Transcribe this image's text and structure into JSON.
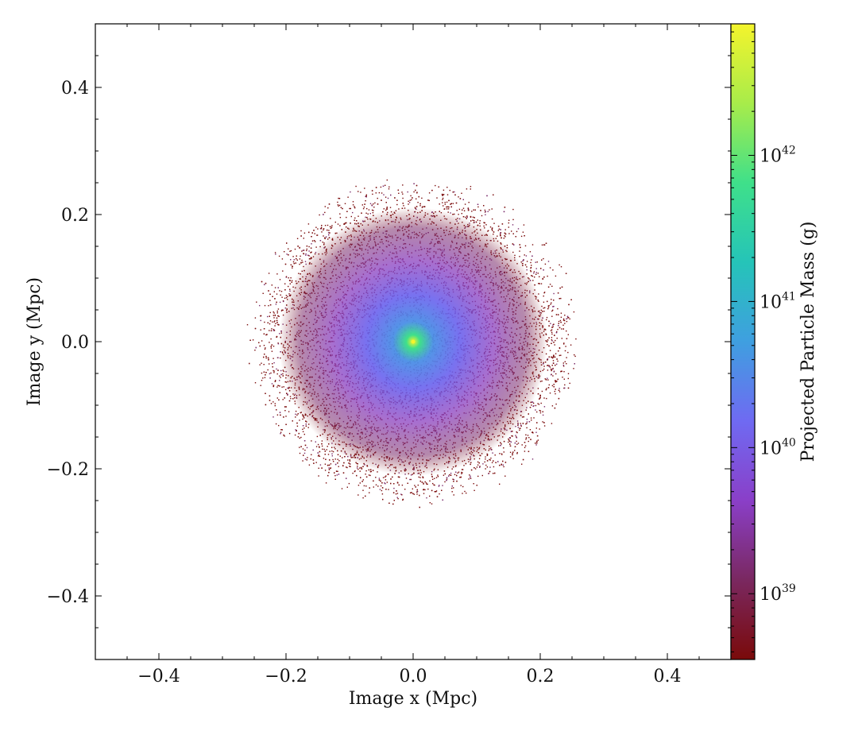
{
  "chart_data": {
    "type": "heatmap",
    "title": "",
    "xlabel": "Image x  (Mpc)",
    "ylabel": "Image y  (Mpc)",
    "xlim": [
      -0.5,
      0.5
    ],
    "ylim": [
      -0.5,
      0.5
    ],
    "x_ticks": [
      {
        "value": -0.4,
        "label": "−0.4"
      },
      {
        "value": -0.2,
        "label": "−0.2"
      },
      {
        "value": 0.0,
        "label": "0.0"
      },
      {
        "value": 0.2,
        "label": "0.2"
      },
      {
        "value": 0.4,
        "label": "0.4"
      }
    ],
    "y_ticks": [
      {
        "value": 0.4,
        "label": "0.4"
      },
      {
        "value": 0.2,
        "label": "0.2"
      },
      {
        "value": 0.0,
        "label": "0.0"
      },
      {
        "value": -0.2,
        "label": "−0.2"
      },
      {
        "value": -0.4,
        "label": "−0.4"
      }
    ],
    "grid": false,
    "distribution": {
      "center": [
        0.0,
        0.0
      ],
      "extent_radius_mpc": 0.24
    },
    "colorbar": {
      "label": "Projected Particle Mass  (g)",
      "scale": "log",
      "range_log10": [
        38.55,
        42.9
      ],
      "ticks": [
        {
          "log10": 39,
          "base": "10",
          "exp": "39"
        },
        {
          "log10": 40,
          "base": "10",
          "exp": "40"
        },
        {
          "log10": 41,
          "base": "10",
          "exp": "41"
        },
        {
          "log10": 42,
          "base": "10",
          "exp": "42"
        }
      ],
      "colormap_stops": [
        "#7a0a0a",
        "#7a2860",
        "#8a3fc8",
        "#6f6af2",
        "#3f9fe0",
        "#25c4b8",
        "#3fe08a",
        "#a8ec4a",
        "#f4f42c"
      ]
    },
    "background_color": "#ffffff"
  }
}
